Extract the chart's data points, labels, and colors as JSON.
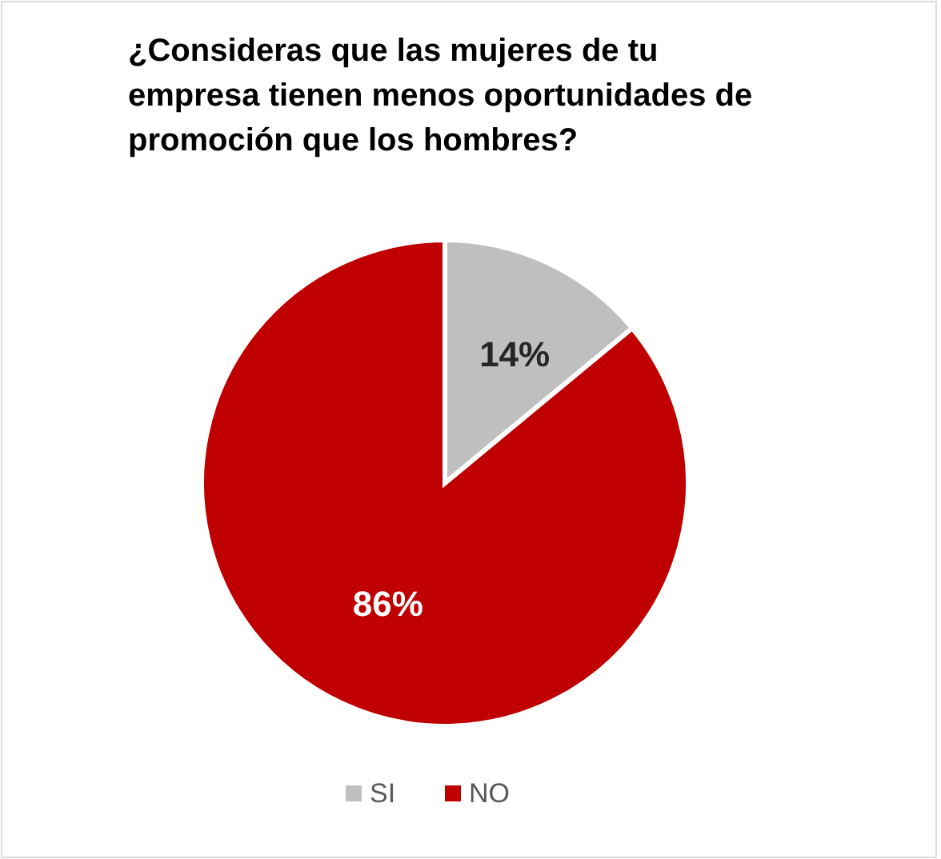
{
  "chart_data": {
    "type": "pie",
    "title": "¿Consideras que las mujeres de tu empresa tienen menos oportunidades de promoción que los hombres?",
    "categories": [
      "SI",
      "NO"
    ],
    "values": [
      14,
      86
    ],
    "colors": [
      "#bfbfbf",
      "#c00000"
    ],
    "value_labels": [
      "14%",
      "86%"
    ],
    "legend": "bottom"
  }
}
